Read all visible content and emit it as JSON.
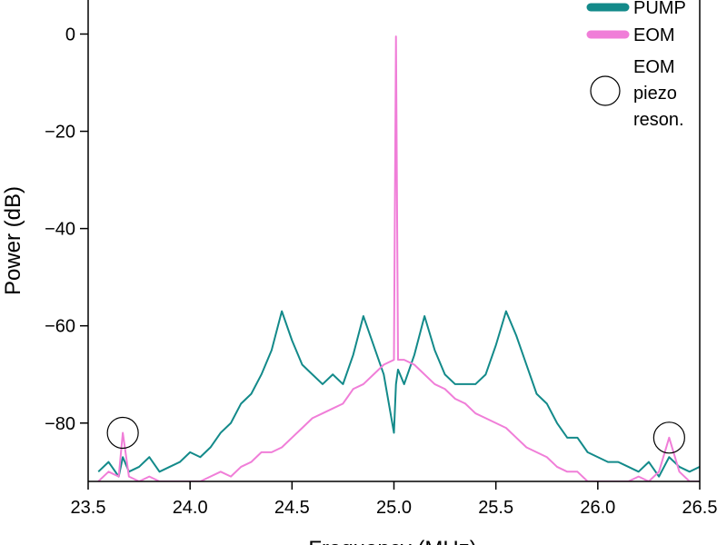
{
  "chart_data": {
    "type": "line",
    "xlabel": "Frequency (MHz)",
    "ylabel": "Power (dB)",
    "x": [
      23.55,
      23.6,
      23.65,
      23.67,
      23.7,
      23.75,
      23.8,
      23.85,
      23.9,
      23.95,
      24.0,
      24.05,
      24.1,
      24.15,
      24.2,
      24.25,
      24.3,
      24.35,
      24.4,
      24.45,
      24.5,
      24.55,
      24.6,
      24.65,
      24.7,
      24.75,
      24.8,
      24.85,
      24.9,
      24.95,
      25.0,
      25.01,
      25.02,
      25.05,
      25.1,
      25.15,
      25.2,
      25.25,
      25.3,
      25.35,
      25.4,
      25.45,
      25.5,
      25.55,
      25.6,
      25.65,
      25.7,
      25.75,
      25.8,
      25.85,
      25.9,
      25.95,
      26.0,
      26.05,
      26.1,
      26.15,
      26.2,
      26.25,
      26.3,
      26.35,
      26.4,
      26.45,
      26.5
    ],
    "series": [
      {
        "name": "PUMP",
        "color": "#138a8a",
        "values": [
          -90,
          -88,
          -91,
          -87,
          -90,
          -89,
          -87,
          -90,
          -89,
          -88,
          -86,
          -87,
          -85,
          -82,
          -80,
          -76,
          -74,
          -70,
          -65,
          -57,
          -63,
          -68,
          -70,
          -72,
          -70,
          -72,
          -66,
          -58,
          -64,
          -70,
          -82,
          -72,
          -69,
          -72,
          -66,
          -58,
          -65,
          -70,
          -72,
          -72,
          -72,
          -70,
          -64,
          -57,
          -62,
          -68,
          -74,
          -76,
          -80,
          -83,
          -83,
          -86,
          -87,
          -88,
          -88,
          -89,
          -90,
          -88,
          -91,
          -87,
          -89,
          -90,
          -89
        ]
      },
      {
        "name": "EOM",
        "color": "#f07ed8",
        "values": [
          -92,
          -90,
          -91,
          -82,
          -91,
          -92,
          -91,
          -92,
          -92,
          -92,
          -92,
          -92,
          -91,
          -90,
          -91,
          -89,
          -88,
          -86,
          -86,
          -85,
          -83,
          -81,
          -79,
          -78,
          -77,
          -76,
          -73,
          -72,
          -70,
          -68,
          -67,
          -0.5,
          -67,
          -67,
          -68,
          -70,
          -72,
          -73,
          -75,
          -76,
          -78,
          -79,
          -80,
          -81,
          -83,
          -85,
          -86,
          -87,
          -89,
          -90,
          -90,
          -92,
          -92,
          -92,
          -92,
          -92,
          -91,
          -92,
          -90,
          -83,
          -90,
          -92,
          -92
        ]
      }
    ],
    "annotation": {
      "label": [
        "EOM",
        "piezo",
        "reson."
      ],
      "points": [
        {
          "x": 23.67,
          "y": -82
        },
        {
          "x": 26.35,
          "y": -83
        }
      ]
    },
    "xlim": [
      23.5,
      26.5
    ],
    "xticks": [
      23.5,
      {
        "value": 24,
        "label": "24.0"
      },
      24.5,
      {
        "value": 25,
        "label": "25.0"
      },
      25.5,
      {
        "value": 26,
        "label": "26.0"
      },
      26.5
    ],
    "ylim": [
      -92,
      7
    ],
    "yticks": [
      0,
      {
        "value": -20,
        "label": "−20"
      },
      {
        "value": -40,
        "label": "−40"
      },
      {
        "value": -60,
        "label": "−60"
      },
      {
        "value": -80,
        "label": "−80"
      }
    ],
    "grid": false
  }
}
